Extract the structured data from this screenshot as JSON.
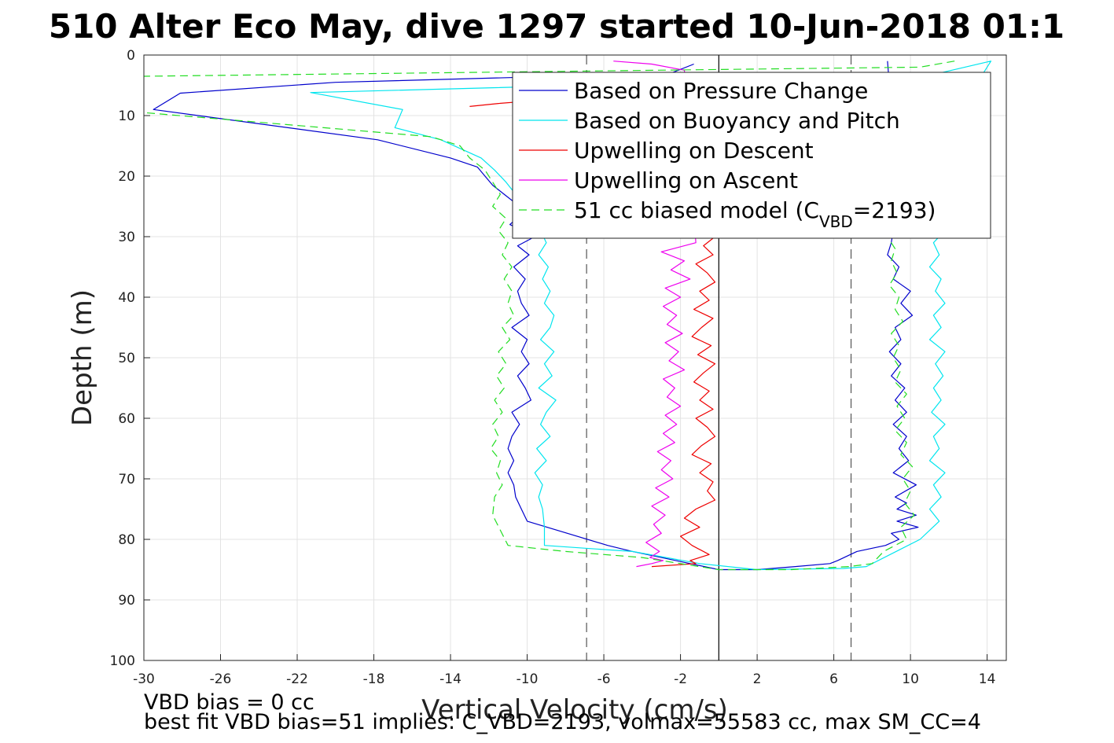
{
  "chart_data": {
    "type": "line",
    "title": "510 Alter Eco May, dive 1297 started 10-Jun-2018 01:1",
    "xlabel": "Vertical Velocity (cm/s)",
    "ylabel": "Depth (m)",
    "xlim": [
      -30,
      15
    ],
    "ylim": [
      0,
      100
    ],
    "y_reversed": true,
    "grid": true,
    "legend_position": "top-right",
    "x_ticks": [
      -30,
      -26,
      -22,
      -18,
      -14,
      -10,
      -6,
      -2,
      2,
      6,
      10,
      14
    ],
    "y_ticks": [
      0,
      10,
      20,
      30,
      40,
      50,
      60,
      70,
      80,
      90,
      100
    ],
    "reference_lines": [
      {
        "x": -6.9,
        "style": "dashed",
        "color": "#555555"
      },
      {
        "x": 0,
        "style": "solid",
        "color": "#000000"
      },
      {
        "x": 6.9,
        "style": "dashed",
        "color": "#555555"
      }
    ],
    "legend": [
      {
        "label": "Based on Pressure Change",
        "color": "#0000cc",
        "dashed": false
      },
      {
        "label": "Based on Buoyancy and Pitch",
        "color": "#00e5ee",
        "dashed": false
      },
      {
        "label": "Upwelling on Descent",
        "color": "#ee0000",
        "dashed": false
      },
      {
        "label": "Upwelling on Ascent",
        "color": "#ee00ee",
        "dashed": false
      },
      {
        "label": "51 cc biased model (C",
        "sub": "VBD",
        "tail": "=2193)",
        "color": "#22dd22",
        "dashed": true
      }
    ],
    "series": [
      {
        "name": "Based on Pressure Change",
        "color": "#0000cc",
        "dashed": false,
        "x": [
          -1.3,
          -2.5,
          -20,
          -28.1,
          -29.5,
          -17.8,
          -14,
          -12.6,
          -12.2,
          -11.8,
          -11.2,
          -10.6,
          -10.2,
          -10.9,
          -9.6,
          -10.5,
          -9.9,
          -10.7,
          -10.1,
          -10.5,
          -10.3,
          -9.9,
          -10.8,
          -10.0,
          -10.3,
          -9.9,
          -10.5,
          -10.1,
          -9.8,
          -10.8,
          -10.4,
          -10.8,
          -11.0,
          -10.7,
          -11.0,
          -10.7,
          -10.6,
          -10.3,
          -10.0,
          -5.8,
          -4.5,
          -3.0,
          -1.5,
          0,
          2,
          4,
          5.8,
          6.2,
          7.2,
          8.7,
          9.4,
          9.0,
          10.4,
          9.3,
          10.3,
          9.3,
          9.8,
          9.2,
          10.3,
          9.1,
          9.9,
          9.4,
          9.8,
          9.1,
          9.8,
          9.2,
          9.7,
          9.0,
          9.5,
          8.9,
          9.5,
          9.2,
          10.1,
          9.5,
          10.0,
          9.1,
          9.4,
          8.8,
          9.0,
          9.1,
          9.6,
          9.3,
          9.8,
          9.5,
          9.6,
          9.2,
          8.9,
          8.8
        ],
        "y": [
          1.5,
          3,
          4.5,
          6.3,
          9,
          14,
          17,
          18.5,
          20,
          21.5,
          23,
          24.5,
          26,
          28,
          30,
          31.5,
          33,
          35,
          37,
          39,
          41,
          43,
          45,
          47,
          49,
          51,
          53,
          55,
          57,
          59,
          61,
          63,
          65,
          67,
          69,
          71,
          73,
          75,
          77,
          81,
          82,
          83,
          84,
          85,
          85,
          84.5,
          84,
          83.5,
          82,
          81,
          80,
          79,
          78,
          77,
          76,
          75,
          74,
          73,
          71,
          69,
          67,
          65,
          63,
          61,
          59,
          57,
          55,
          53,
          51,
          49,
          47,
          45,
          43,
          41,
          39,
          37,
          35,
          33,
          31,
          29,
          27,
          25,
          23,
          21,
          19,
          17,
          5,
          1
        ]
      },
      {
        "name": "Based on Buoyancy and Pitch",
        "color": "#00e5ee",
        "dashed": false,
        "x": [
          0.5,
          -1.5,
          -7,
          -21.3,
          -16.5,
          -16.9,
          -14.5,
          -12.4,
          -11.7,
          -11.1,
          -10.6,
          -10.2,
          -9.8,
          -9.3,
          -9.0,
          -9.4,
          -8.9,
          -9.2,
          -8.8,
          -9.1,
          -8.6,
          -8.8,
          -9.3,
          -8.6,
          -9.1,
          -8.7,
          -9.4,
          -8.5,
          -9.0,
          -9.3,
          -8.8,
          -9.5,
          -9.0,
          -9.6,
          -9.2,
          -9.4,
          -9.2,
          -9.1,
          -9.1,
          -4.5,
          -1.0,
          2,
          6.5,
          7.7,
          10.5,
          11.5,
          11.0,
          11.6,
          11.2,
          11.8,
          11.0,
          11.5,
          11.2,
          11.8,
          11.1,
          11.6,
          11.2,
          11.7,
          11.3,
          11.8,
          11.0,
          11.6,
          11.2,
          11.8,
          11.3,
          11.6,
          11.0,
          11.5,
          11.2,
          11.8,
          11.1,
          12.2,
          11.0,
          11.5,
          10.8,
          11.2,
          14.2,
          11.5
        ],
        "y": [
          3,
          4.5,
          5,
          6.2,
          9,
          12,
          14,
          17,
          19,
          21,
          23,
          25,
          27,
          29,
          31,
          33,
          35,
          37,
          39,
          41,
          43,
          45,
          47,
          49,
          51,
          53,
          55,
          57,
          59,
          61,
          63,
          65,
          67,
          69,
          71,
          73,
          75,
          78,
          81,
          82,
          84,
          85,
          84.8,
          84.5,
          80,
          77,
          75,
          73,
          71,
          69,
          67,
          65,
          63,
          61,
          59,
          57,
          55,
          53,
          51,
          49,
          47,
          45,
          43,
          41,
          39,
          37,
          35,
          33,
          31,
          29,
          27,
          25,
          23,
          21,
          19,
          16,
          1,
          3
        ]
      },
      {
        "name": "Upwelling on Descent",
        "color": "#ee0000",
        "dashed": false,
        "x": [
          -13,
          -11.5,
          -9.5,
          -0.2,
          -0.8,
          -0.3,
          -1.2,
          -0.6,
          -0.2,
          -1.0,
          -0.5,
          -1.3,
          -0.3,
          -0.9,
          -1.4,
          -0.4,
          -1.1,
          -0.2,
          -0.8,
          -1.3,
          -0.5,
          -1.0,
          -0.3,
          -1.2,
          -0.6,
          -0.2,
          -0.9,
          -1.4,
          -0.4,
          -1.0,
          -0.3,
          -0.6,
          -0.2,
          -1.2,
          -1.8,
          -1.0,
          -2.0,
          -1.4,
          -0.5,
          -1.5,
          -1.2,
          -3.5
        ],
        "y": [
          8.5,
          8.0,
          7.5,
          30,
          31.5,
          33,
          34.5,
          36,
          37.5,
          39,
          40.5,
          42,
          43.5,
          45,
          46.5,
          48,
          49.5,
          51,
          52.5,
          54,
          55.5,
          57,
          58.5,
          60,
          61.5,
          63,
          64.5,
          66,
          67.5,
          69,
          70.5,
          72,
          73.5,
          75,
          76.5,
          78,
          79.5,
          81,
          82.5,
          83.5,
          84,
          84.5
        ]
      },
      {
        "name": "Upwelling on Ascent",
        "color": "#ee00ee",
        "dashed": false,
        "x": [
          -5.5,
          -3.5,
          -1.8,
          -1.2,
          -3.0,
          -1.8,
          -2.5,
          -1.5,
          -2.8,
          -2.0,
          -2.9,
          -2.2,
          -2.7,
          -1.9,
          -2.8,
          -2.1,
          -2.6,
          -1.8,
          -2.9,
          -2.3,
          -2.7,
          -2.0,
          -2.8,
          -2.2,
          -2.9,
          -2.3,
          -3.2,
          -2.5,
          -3.0,
          -2.4,
          -3.3,
          -2.6,
          -3.5,
          -2.8,
          -3.4,
          -3.0,
          -3.8,
          -3.1,
          -3.6,
          -2.9,
          -3.5,
          -4.3
        ],
        "y": [
          1,
          1.5,
          2.5,
          31,
          32.5,
          34,
          35.5,
          37,
          38.5,
          40,
          41.5,
          43,
          44.5,
          46,
          47.5,
          49,
          50.5,
          52,
          53.5,
          55,
          56.5,
          58,
          59.5,
          61,
          62.5,
          64,
          65.5,
          67,
          68.5,
          70,
          71.5,
          73,
          74.5,
          76,
          77.5,
          79,
          80.5,
          82,
          83,
          83.5,
          84,
          84.5
        ]
      },
      {
        "name": "51 cc biased model (C_VBD=2193)",
        "color": "#22dd22",
        "dashed": true,
        "x": [
          12.3,
          10.5,
          -30,
          -32,
          -30,
          -15,
          -13.5,
          -13,
          -12.2,
          -11.8,
          -11.4,
          -11.8,
          -11.1,
          -11.5,
          -11.0,
          -11.3,
          -10.8,
          -11.2,
          -10.8,
          -11.0,
          -10.7,
          -11.3,
          -10.9,
          -11.5,
          -11.1,
          -11.6,
          -11.2,
          -11.7,
          -11.3,
          -11.8,
          -11.5,
          -11.9,
          -11.4,
          -11.6,
          -11.3,
          -11.7,
          -11.8,
          -11.0,
          -8.0,
          -4.0,
          0,
          3.8,
          6.8,
          8.0,
          8.6,
          9.8,
          9.5,
          10.2,
          9.7,
          10.0,
          9.6,
          10.1,
          9.5,
          9.8,
          9.2,
          9.7,
          9.3,
          9.8,
          9.2,
          9.5,
          9.1,
          9.4,
          9.0,
          9.6,
          9.2,
          9.4,
          8.9,
          9.3,
          9.0,
          9.2,
          8.8,
          9.1,
          8.8,
          9.0,
          8.9,
          9.2,
          8.8
        ],
        "y": [
          1,
          2,
          3.5,
          3.5,
          9.5,
          13.5,
          15,
          17,
          19,
          21,
          23,
          25,
          27,
          29,
          31,
          33,
          35,
          37,
          39,
          41,
          43,
          45,
          47,
          49,
          51,
          53,
          55,
          57,
          59,
          61,
          63,
          65,
          67,
          69,
          71,
          73,
          76,
          81,
          82,
          83,
          85,
          85,
          84.5,
          84,
          82,
          80,
          78,
          76,
          74,
          72,
          70,
          68,
          66,
          64,
          62,
          60,
          58,
          56,
          54,
          52,
          50,
          48,
          46,
          44,
          42,
          40,
          38,
          36,
          34,
          32,
          30,
          28,
          26,
          24,
          22,
          20,
          18
        ]
      }
    ]
  },
  "notes": {
    "line1": "VBD bias = 0 cc",
    "line2": "best fit VBD bias=51 implies: C_VBD=2193, volmax=55583 cc, max SM_CC=4"
  }
}
